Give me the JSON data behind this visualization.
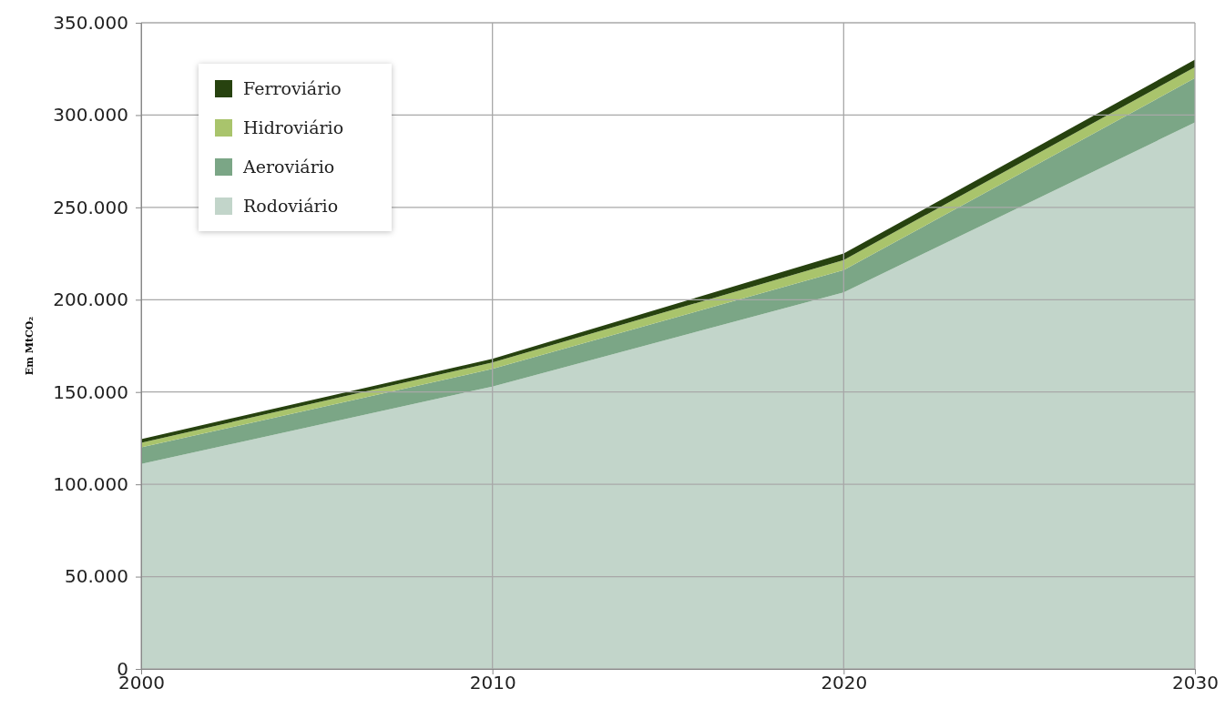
{
  "chart_data": {
    "type": "area",
    "stacked": true,
    "ylabel": "Em MtCO₂",
    "x": [
      2000,
      2010,
      2020,
      2030
    ],
    "series": [
      {
        "name": "Rodoviário",
        "color": "#c2d5ca",
        "values": [
          111000,
          153000,
          204000,
          296000
        ]
      },
      {
        "name": "Aeroviário",
        "color": "#7ba686",
        "values": [
          9000,
          9500,
          12000,
          24000
        ]
      },
      {
        "name": "Hidroviário",
        "color": "#a9c46c",
        "values": [
          2500,
          3500,
          5500,
          6000
        ]
      },
      {
        "name": "Ferroviário",
        "color": "#27420f",
        "values": [
          2000,
          2000,
          3500,
          4000
        ]
      }
    ],
    "xlim": [
      2000,
      2030
    ],
    "xticks": [
      2000,
      2010,
      2020,
      2030
    ],
    "ylim": [
      0,
      350000
    ],
    "yticks": [
      0,
      {
        "value": 50000,
        "label": "50.000"
      },
      {
        "value": 100000,
        "label": "100.000"
      },
      {
        "value": 150000,
        "label": "150.000"
      },
      {
        "value": 200000,
        "label": "200.000"
      },
      {
        "value": 250000,
        "label": "250.000"
      },
      {
        "value": 300000,
        "label": "300.000"
      },
      {
        "value": 350000,
        "label": "350.000"
      }
    ],
    "grid": true,
    "legend": "top left"
  }
}
